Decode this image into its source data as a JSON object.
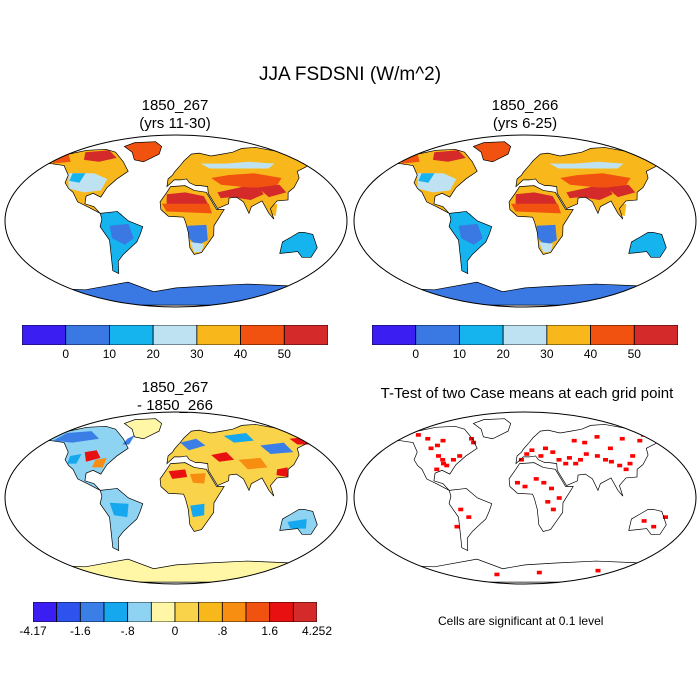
{
  "main_title": "JJA FSDSNI (W/m^2)",
  "panels": [
    {
      "title_line1": "1850_267",
      "title_line2": "(yrs 11-30)"
    },
    {
      "title_line1": "1850_266",
      "title_line2": "(yrs 6-25)"
    },
    {
      "title_line1": "1850_267",
      "title_line2": "- 1850_266"
    },
    {
      "title_line1": "T-Test of two Case means at each grid point",
      "title_line2": ""
    }
  ],
  "colorbar_abs": {
    "colors": [
      "#3b1ef2",
      "#3a78e3",
      "#16b4ee",
      "#bfe2f2",
      "#f8b81c",
      "#f2520f",
      "#d42a2a"
    ],
    "labels": [
      "0",
      "10",
      "20",
      "30",
      "40",
      "50"
    ]
  },
  "colorbar_diff": {
    "colors": [
      "#3b1ef2",
      "#2d52ee",
      "#3a7ee6",
      "#16a8ee",
      "#8fd3f2",
      "#fff7a6",
      "#f9d34a",
      "#f8b81c",
      "#f78e12",
      "#f2520f",
      "#e81010",
      "#d42a2a"
    ],
    "labels": [
      "-4.17",
      "-1.6",
      "-.8",
      "0",
      ".8",
      "1.6",
      "4.252"
    ]
  },
  "significance_note": "Cells are significant at 0.1 level",
  "significance_color": "#ff0000"
}
